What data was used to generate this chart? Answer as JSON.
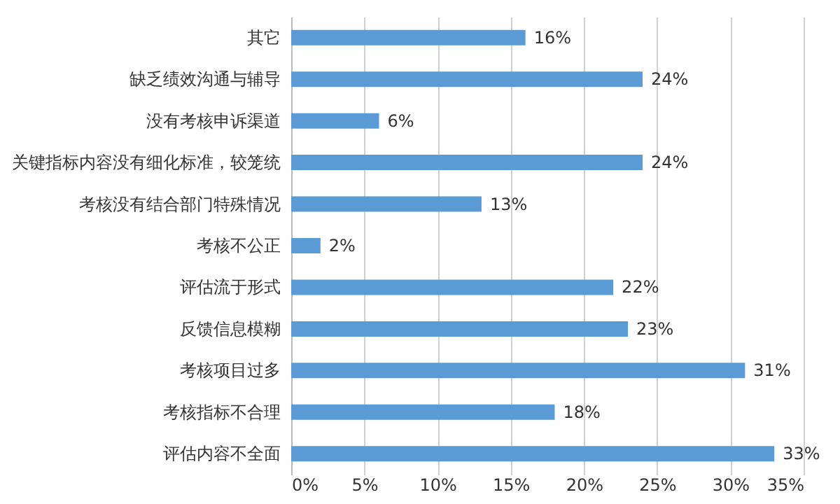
{
  "chart_data": {
    "type": "bar",
    "orientation": "horizontal",
    "categories": [
      "其它",
      "缺乏绩效沟通与辅导",
      "没有考核申诉渠道",
      "关键指标内容没有细化标准，较笼统",
      "考核没有结合部门特殊情况",
      "考核不公正",
      "评估流于形式",
      "反馈信息模糊",
      "考核项目过多",
      "考核指标不合理",
      "评估内容不全面"
    ],
    "values": [
      16,
      24,
      6,
      24,
      13,
      2,
      22,
      23,
      31,
      18,
      33
    ],
    "value_labels": [
      "16%",
      "24%",
      "6%",
      "24%",
      "13%",
      "2%",
      "22%",
      "23%",
      "31%",
      "18%",
      "33%"
    ],
    "color": "#5b9bd5",
    "xlim": [
      0,
      35
    ],
    "xticks": [
      {
        "value": 0,
        "label": "0%"
      },
      {
        "value": 5,
        "label": "5%"
      },
      {
        "value": 10,
        "label": "10%"
      },
      {
        "value": 15,
        "label": "15%"
      },
      {
        "value": 20,
        "label": "20%"
      },
      {
        "value": 25,
        "label": "25%"
      },
      {
        "value": 30,
        "label": "30%"
      },
      {
        "value": 35,
        "label": "35%"
      }
    ],
    "grid": "x"
  }
}
